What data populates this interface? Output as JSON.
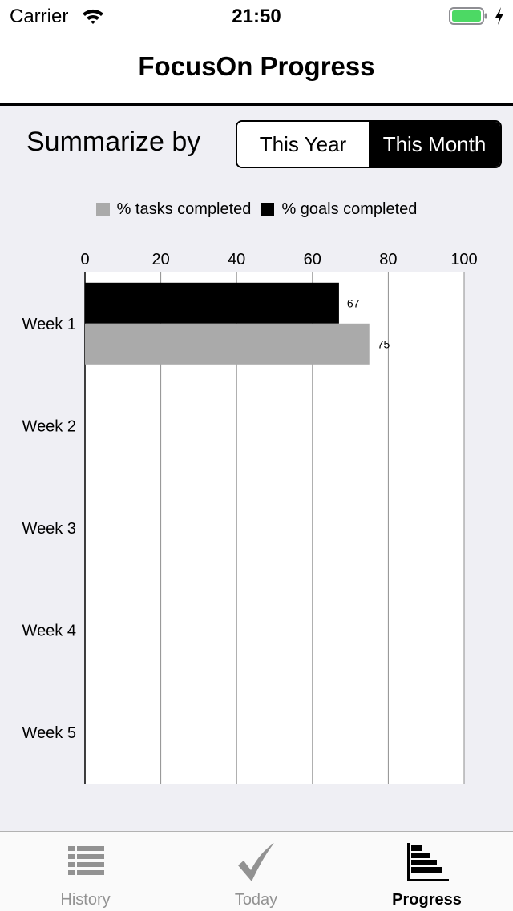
{
  "status_bar": {
    "carrier": "Carrier",
    "time": "21:50"
  },
  "nav": {
    "title": "FocusOn Progress"
  },
  "summarize": {
    "label": "Summarize by",
    "segments": [
      {
        "label": "This Year",
        "selected": false
      },
      {
        "label": "This Month",
        "selected": true
      }
    ]
  },
  "legend": {
    "items": [
      {
        "label": "% tasks completed",
        "color": "#aaaaaa"
      },
      {
        "label": "% goals completed",
        "color": "#000000"
      }
    ]
  },
  "chart_data": {
    "type": "bar",
    "orientation": "horizontal",
    "categories": [
      "Week 1",
      "Week 2",
      "Week 3",
      "Week 4",
      "Week 5"
    ],
    "series": [
      {
        "name": "% goals completed",
        "color": "#000000",
        "values": [
          67,
          null,
          null,
          null,
          null
        ]
      },
      {
        "name": "% tasks completed",
        "color": "#aaaaaa",
        "values": [
          75,
          null,
          null,
          null,
          null
        ]
      }
    ],
    "xlim": [
      0,
      100
    ],
    "x_ticks": [
      0,
      20,
      40,
      60,
      80,
      100
    ],
    "x_axis_position": "top",
    "grid": true,
    "data_labels": true,
    "legend_position": "top"
  },
  "tabs": [
    {
      "label": "History",
      "icon": "list-icon",
      "active": false
    },
    {
      "label": "Today",
      "icon": "checkmark-icon",
      "active": false
    },
    {
      "label": "Progress",
      "icon": "bar-chart-icon",
      "active": true
    }
  ]
}
